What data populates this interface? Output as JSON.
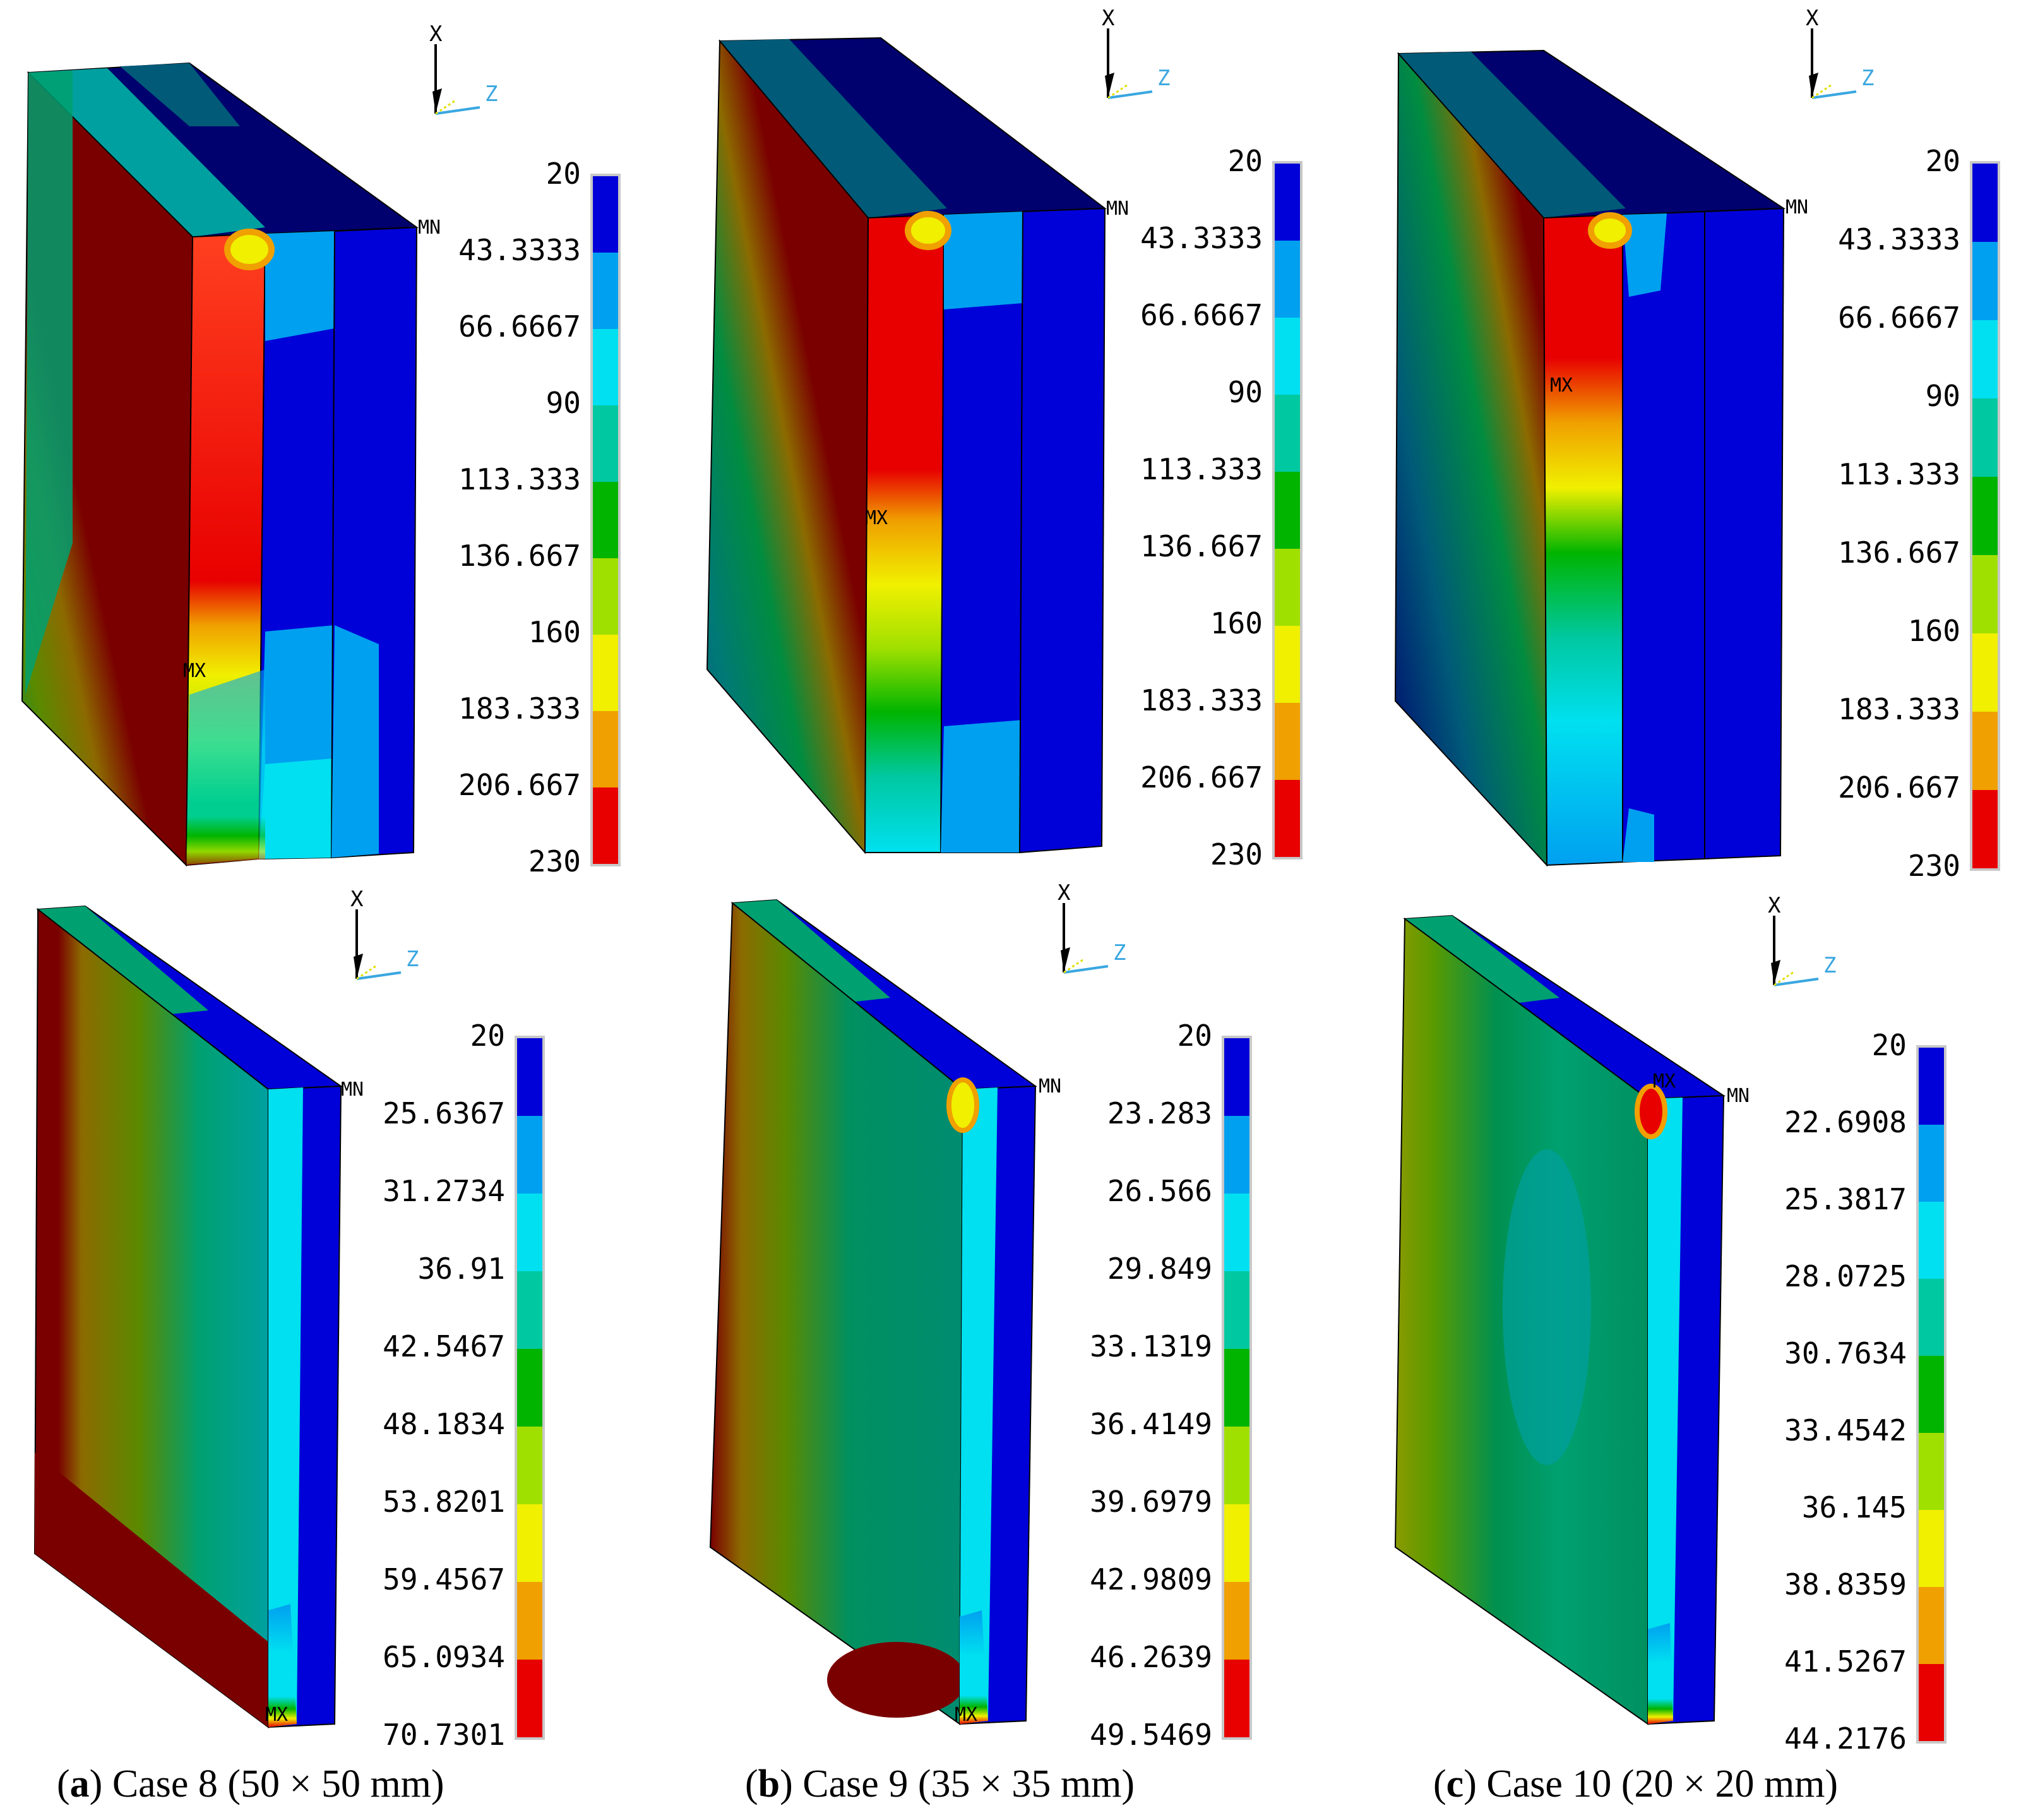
{
  "colors": {
    "c1": "#0000d8",
    "c2": "#00a0f0",
    "c3": "#00e0f0",
    "c4": "#00c8a0",
    "c5": "#00b400",
    "c6": "#a0e000",
    "c7": "#f0f000",
    "c8": "#f0a000",
    "c9": "#e80000",
    "dark_red": "#7a0000",
    "dark_teal": "#005a78",
    "teal": "#008c80",
    "navy": "#00006e"
  },
  "axis_triad": {
    "x_label": "X",
    "z_label": "Z",
    "icon": "axis-triad-icon"
  },
  "markers": {
    "max": "MX",
    "min": "MN"
  },
  "panels": [
    {
      "id": "a",
      "caption_letter": "a",
      "caption_text": "Case 8 (50 × 50 mm)",
      "top_legend": [
        "20",
        "43.3333",
        "66.6667",
        "90",
        "113.333",
        "136.667",
        "160",
        "183.333",
        "206.667",
        "230"
      ],
      "bottom_legend": [
        "20",
        "25.6367",
        "31.2734",
        "36.91",
        "42.5467",
        "48.1834",
        "53.8201",
        "59.4567",
        "65.0934",
        "70.7301"
      ]
    },
    {
      "id": "b",
      "caption_letter": "b",
      "caption_text": "Case 9 (35 × 35 mm)",
      "top_legend": [
        "20",
        "43.3333",
        "66.6667",
        "90",
        "113.333",
        "136.667",
        "160",
        "183.333",
        "206.667",
        "230"
      ],
      "bottom_legend": [
        "20",
        "23.283",
        "26.566",
        "29.849",
        "33.1319",
        "36.4149",
        "39.6979",
        "42.9809",
        "46.2639",
        "49.5469"
      ]
    },
    {
      "id": "c",
      "caption_letter": "c",
      "caption_text": "Case 10 (20 × 20 mm)",
      "top_legend": [
        "20",
        "43.3333",
        "66.6667",
        "90",
        "113.333",
        "136.667",
        "160",
        "183.333",
        "206.667",
        "230"
      ],
      "bottom_legend": [
        "20",
        "22.6908",
        "25.3817",
        "28.0725",
        "30.7634",
        "33.4542",
        "36.145",
        "38.8359",
        "41.5267",
        "44.2176"
      ]
    }
  ]
}
